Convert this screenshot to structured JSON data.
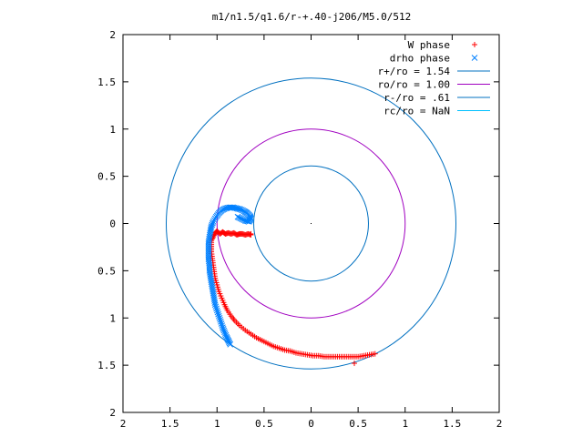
{
  "chart_data": {
    "type": "scatter",
    "title": "m1/n1.5/q1.6/r-+.40-j206/M5.0/512",
    "xlabel": "",
    "ylabel": "",
    "xlim": [
      -2,
      2
    ],
    "ylim": [
      -2,
      2
    ],
    "x_tick_values": [
      -2,
      -1.5,
      -1,
      -0.5,
      0,
      0.5,
      1,
      1.5,
      2
    ],
    "x_tick_labels": [
      "2",
      "1.5",
      "1",
      "0.5",
      "0",
      "0.5",
      "1",
      "1.5",
      "2"
    ],
    "y_tick_values": [
      2,
      1.5,
      1,
      0.5,
      0,
      -0.5,
      -1,
      -1.5,
      -2
    ],
    "y_tick_labels": [
      "2",
      "1.5",
      "1",
      "0.5",
      "0",
      "0.5",
      "1",
      "1.5",
      "2"
    ],
    "grid": false,
    "legend_position": "top-right",
    "series": [
      {
        "name": "W phase",
        "marker": "plus",
        "color": "#ff0000",
        "points": [
          [
            0.68,
            -1.38
          ],
          [
            0.62,
            -1.39
          ],
          [
            0.56,
            -1.4
          ],
          [
            0.5,
            -1.41
          ],
          [
            0.44,
            -1.41
          ],
          [
            0.38,
            -1.41
          ],
          [
            0.32,
            -1.41
          ],
          [
            0.26,
            -1.41
          ],
          [
            0.2,
            -1.41
          ],
          [
            0.14,
            -1.41
          ],
          [
            0.08,
            -1.4
          ],
          [
            0.02,
            -1.4
          ],
          [
            -0.04,
            -1.39
          ],
          [
            -0.1,
            -1.38
          ],
          [
            -0.16,
            -1.37
          ],
          [
            -0.22,
            -1.35
          ],
          [
            -0.28,
            -1.34
          ],
          [
            -0.34,
            -1.32
          ],
          [
            -0.4,
            -1.3
          ],
          [
            -0.46,
            -1.27
          ],
          [
            -0.52,
            -1.24
          ],
          [
            -0.58,
            -1.21
          ],
          [
            -0.64,
            -1.17
          ],
          [
            -0.7,
            -1.13
          ],
          [
            -0.76,
            -1.08
          ],
          [
            -0.81,
            -1.03
          ],
          [
            -0.85,
            -0.98
          ],
          [
            -0.89,
            -0.92
          ],
          [
            -0.92,
            -0.86
          ],
          [
            -0.95,
            -0.79
          ],
          [
            -0.98,
            -0.72
          ],
          [
            -1.0,
            -0.65
          ],
          [
            -1.02,
            -0.58
          ],
          [
            -1.03,
            -0.51
          ],
          [
            -1.04,
            -0.44
          ],
          [
            -1.05,
            -0.37
          ],
          [
            -1.06,
            -0.3
          ],
          [
            -1.06,
            -0.24
          ],
          [
            -1.06,
            -0.18
          ],
          [
            -1.04,
            -0.14
          ],
          [
            -1.02,
            -0.1
          ],
          [
            -1.0,
            -0.08
          ],
          [
            -0.97,
            -0.11
          ],
          [
            -0.94,
            -0.09
          ],
          [
            -0.91,
            -0.11
          ],
          [
            -0.88,
            -0.1
          ],
          [
            -0.85,
            -0.11
          ],
          [
            -0.82,
            -0.1
          ],
          [
            -0.79,
            -0.12
          ],
          [
            -0.76,
            -0.11
          ],
          [
            -0.73,
            -0.11
          ],
          [
            -0.7,
            -0.12
          ],
          [
            -0.67,
            -0.11
          ],
          [
            -0.64,
            -0.12
          ],
          [
            0.46,
            -1.48
          ],
          [
            -0.64,
            -0.11
          ]
        ]
      },
      {
        "name": "drho phase",
        "marker": "cross",
        "color": "#0080ff",
        "points": [
          [
            -0.86,
            -1.28
          ],
          [
            -0.88,
            -1.24
          ],
          [
            -0.9,
            -1.2
          ],
          [
            -0.92,
            -1.15
          ],
          [
            -0.94,
            -1.1
          ],
          [
            -0.96,
            -1.04
          ],
          [
            -0.98,
            -0.98
          ],
          [
            -1.0,
            -0.92
          ],
          [
            -1.02,
            -0.86
          ],
          [
            -1.03,
            -0.8
          ],
          [
            -1.04,
            -0.74
          ],
          [
            -1.05,
            -0.68
          ],
          [
            -1.06,
            -0.62
          ],
          [
            -1.07,
            -0.56
          ],
          [
            -1.08,
            -0.5
          ],
          [
            -1.08,
            -0.44
          ],
          [
            -1.09,
            -0.38
          ],
          [
            -1.09,
            -0.32
          ],
          [
            -1.09,
            -0.26
          ],
          [
            -1.09,
            -0.2
          ],
          [
            -1.08,
            -0.14
          ],
          [
            -1.07,
            -0.08
          ],
          [
            -1.06,
            -0.03
          ],
          [
            -1.04,
            0.02
          ],
          [
            -1.01,
            0.07
          ],
          [
            -0.98,
            0.11
          ],
          [
            -0.95,
            0.14
          ],
          [
            -0.91,
            0.16
          ],
          [
            -0.87,
            0.17
          ],
          [
            -0.83,
            0.17
          ],
          [
            -0.79,
            0.16
          ],
          [
            -0.75,
            0.15
          ],
          [
            -0.71,
            0.13
          ],
          [
            -0.68,
            0.11
          ],
          [
            -0.65,
            0.08
          ],
          [
            -0.64,
            0.05
          ],
          [
            -0.66,
            0.02
          ],
          [
            -0.7,
            0.03
          ],
          [
            -0.74,
            0.05
          ],
          [
            -0.78,
            0.07
          ]
        ]
      }
    ],
    "circles": [
      {
        "name": "r+/ro = 1.54",
        "r": 1.54,
        "color": "#0070c0"
      },
      {
        "name": "ro/ro = 1.00",
        "r": 1.0,
        "color": "#a000c0"
      },
      {
        "name": "r-/ro = .61",
        "r": 0.61,
        "color": "#0070c0"
      },
      {
        "name": "rc/ro = NaN",
        "r": null,
        "color": "#00c0ff"
      }
    ],
    "legend": [
      {
        "label": "W phase",
        "marker": "plus",
        "color": "#ff0000"
      },
      {
        "label": "drho phase",
        "marker": "cross",
        "color": "#0080ff"
      },
      {
        "label": "r+/ro = 1.54",
        "marker": "line",
        "color": "#0070c0"
      },
      {
        "label": "ro/ro = 1.00",
        "marker": "line",
        "color": "#a000c0"
      },
      {
        "label": "r-/ro = .61",
        "marker": "line",
        "color": "#0070c0"
      },
      {
        "label": "rc/ro = NaN",
        "marker": "line",
        "color": "#00c0ff"
      }
    ]
  }
}
